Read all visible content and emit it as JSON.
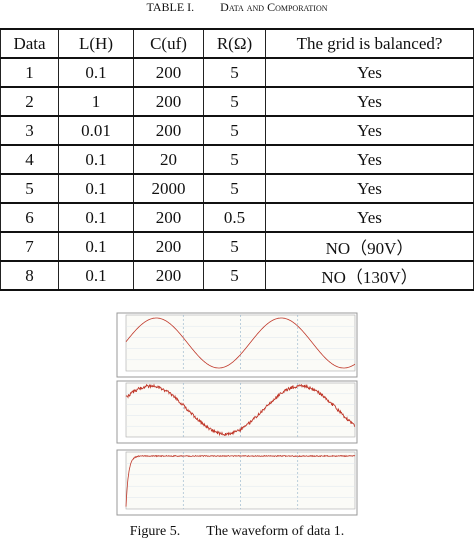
{
  "table": {
    "caption": {
      "label": "TABLE I.",
      "title": "Data and Comporation"
    },
    "header": [
      "Data",
      "L(H)",
      "C(uf)",
      "R(Ω)",
      "The grid is balanced?"
    ],
    "rows": [
      [
        "1",
        "0.1",
        "200",
        "5",
        "Yes"
      ],
      [
        "2",
        "1",
        "200",
        "5",
        "Yes"
      ],
      [
        "3",
        "0.01",
        "200",
        "5",
        "Yes"
      ],
      [
        "4",
        "0.1",
        "20",
        "5",
        "Yes"
      ],
      [
        "5",
        "0.1",
        "2000",
        "5",
        "Yes"
      ],
      [
        "6",
        "0.1",
        "200",
        "0.5",
        "Yes"
      ],
      [
        "7",
        "0.1",
        "200",
        "5",
        "NO（90V）"
      ],
      [
        "8",
        "0.1",
        "200",
        "5",
        "NO（130V）"
      ]
    ]
  },
  "figure": {
    "label": "Figure 5.",
    "caption": "The waveform of data 1."
  }
}
